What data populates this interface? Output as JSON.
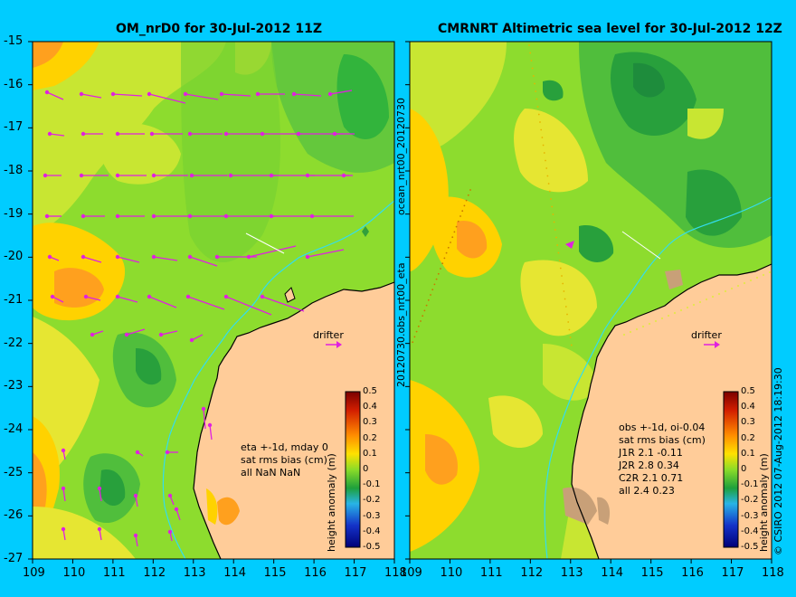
{
  "left_panel": {
    "title": "OM_nrD0 for 30-Jul-2012 11Z",
    "stats_lines": [
      "eta +-1d, mday 0",
      "sat rms bias (cm)",
      "all NaN NaN"
    ],
    "drifter_label": "drifter"
  },
  "right_panel": {
    "title": "CMRNRT Altimetric sea level  for 30-Jul-2012 12Z",
    "stats_lines": [
      "obs +-1d, oi-0.04",
      "sat rms bias (cm)",
      "J1R   2.1 -0.11",
      "J2R   2.8 0.34",
      "C2R   2.1 0.71",
      "all 2.4 0.23"
    ],
    "drifter_label": "drifter"
  },
  "x_ticks": [
    "109",
    "110",
    "111",
    "112",
    "113",
    "114",
    "115",
    "116",
    "117",
    "118"
  ],
  "y_ticks": [
    "-15",
    "-16",
    "-17",
    "-18",
    "-19",
    "-20",
    "-21",
    "-22",
    "-23",
    "-24",
    "-25",
    "-26",
    "-27"
  ],
  "colorbar": {
    "label": "height anomaly (m)",
    "ticks": [
      "0.5",
      "0.4",
      "0.3",
      "0.2",
      "0.1",
      "0",
      "-0.1",
      "-0.2",
      "-0.3",
      "-0.4",
      "-0.5"
    ],
    "range": [
      -0.5,
      0.5
    ]
  },
  "middle_vertical_text": "20120730.obs_nrt00_eta",
  "middle_vertical_text_top": "ocean_nrt00_20120730",
  "right_vertical_text": "© CSIRO 2012  07-Aug-2012 18:19:30",
  "colors": {
    "background": "#00CCFF",
    "land": "#FFCC99",
    "vector": "#E020E0",
    "isobath": "#33DDEE",
    "base_field": "#8DDC2E"
  },
  "map_extent": {
    "lon": [
      109,
      118
    ],
    "lat": [
      -27,
      -15
    ]
  }
}
